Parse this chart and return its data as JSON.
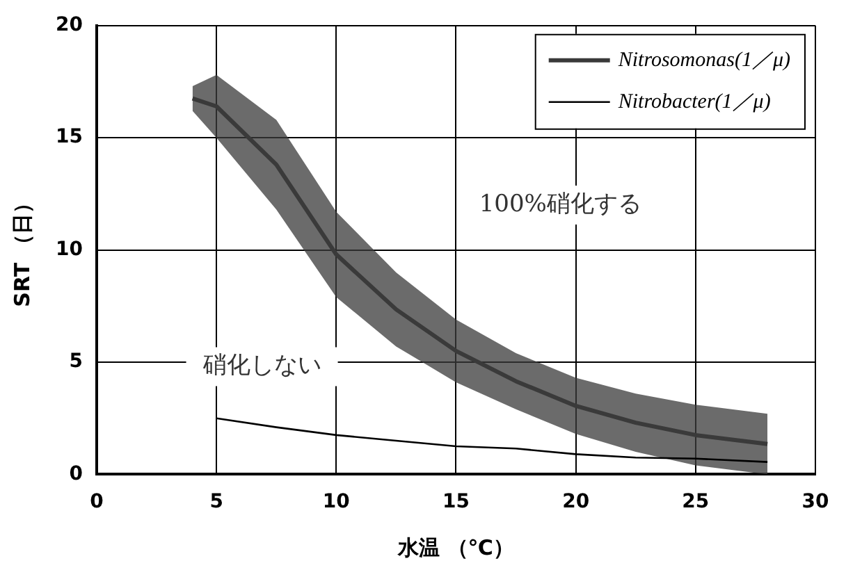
{
  "chart_data": {
    "type": "line",
    "xlabel": "水温 （℃）",
    "ylabel": "SRT （日）",
    "xlim": [
      0,
      30
    ],
    "xticks": [
      0,
      5,
      10,
      15,
      20,
      25,
      30
    ],
    "ylim": [
      0,
      20
    ],
    "yticks": [
      0,
      5,
      10,
      15,
      20
    ],
    "grid": true,
    "legend": "top right",
    "marker": "none",
    "line_style": "solid",
    "series": [
      {
        "name": "Nitrosomonas(1／μ)",
        "color": "#3a3a3a",
        "x": [
          4,
          5,
          7.5,
          10,
          12.5,
          15,
          17.5,
          20,
          22.5,
          25,
          28
        ],
        "values": [
          16.75,
          16.4,
          13.8,
          9.8,
          7.35,
          5.5,
          4.15,
          3.05,
          2.3,
          1.75,
          1.35
        ],
        "lower": [
          16.2,
          15.0,
          11.8,
          7.9,
          5.7,
          4.1,
          2.9,
          1.8,
          1.0,
          0.4,
          0
        ],
        "upper": [
          17.3,
          17.8,
          15.8,
          11.7,
          9.0,
          6.9,
          5.4,
          4.3,
          3.6,
          3.1,
          2.7
        ]
      },
      {
        "name": "Nitrobacter(1／μ)",
        "color": "#000000",
        "x": [
          5,
          7.5,
          10,
          12.5,
          15,
          17.5,
          20,
          22.5,
          25,
          28
        ],
        "values": [
          2.5,
          2.1,
          1.75,
          1.5,
          1.25,
          1.15,
          0.9,
          0.75,
          0.7,
          0.55
        ]
      }
    ],
    "annotations": [
      "100%硝化する",
      "硝化しない"
    ]
  }
}
